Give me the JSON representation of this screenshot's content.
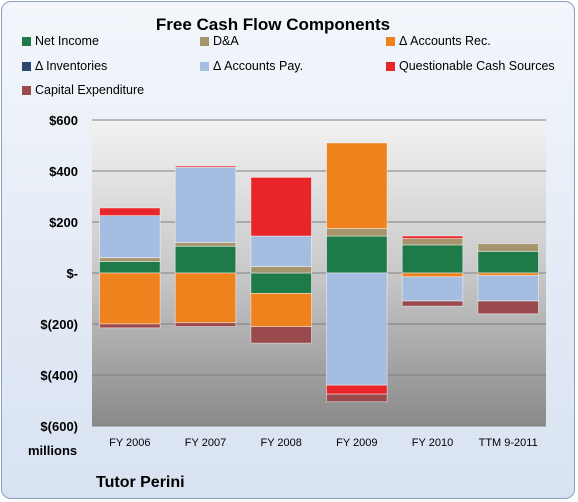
{
  "chart_data": {
    "type": "bar",
    "stacked": true,
    "title": "Free Cash Flow Components",
    "categories": [
      "FY 2006",
      "FY 2007",
      "FY 2008",
      "FY 2009",
      "FY 2010",
      "TTM 9-2011"
    ],
    "ylim": [
      -600,
      600
    ],
    "yticks": [
      600,
      400,
      200,
      0,
      -200,
      -400,
      -600
    ],
    "ytick_labels": [
      "$600",
      "$400",
      "$200",
      "$-",
      "$(200)",
      "$(400)",
      "$(600)"
    ],
    "ylabel": "",
    "units_label": "millions",
    "company": "Tutor Perini",
    "grid": true,
    "legend_position": "top",
    "series": [
      {
        "name": "Net Income",
        "color": "#1f7a4a",
        "values": [
          45,
          105,
          -80,
          145,
          110,
          85
        ]
      },
      {
        "name": "D&A",
        "color": "#a6946c",
        "values": [
          15,
          15,
          25,
          30,
          25,
          30
        ]
      },
      {
        "name": "Δ Accounts Rec.",
        "color": "#f0821e",
        "values": [
          -200,
          -195,
          -130,
          335,
          -15,
          -10
        ]
      },
      {
        "name": "Δ Inventories",
        "color": "#2c4770",
        "values": [
          0,
          0,
          0,
          0,
          0,
          0
        ]
      },
      {
        "name": "Δ Accounts Pay.",
        "color": "#a5bde0",
        "values": [
          165,
          295,
          120,
          -440,
          -95,
          -100
        ]
      },
      {
        "name": "Questionable Cash Sources",
        "color": "#e8262a",
        "values": [
          30,
          5,
          230,
          -35,
          10,
          0
        ]
      },
      {
        "name": "Capital Expenditure",
        "color": "#9a4a4c",
        "values": [
          -15,
          -15,
          -65,
          -30,
          -20,
          -50
        ]
      }
    ]
  }
}
